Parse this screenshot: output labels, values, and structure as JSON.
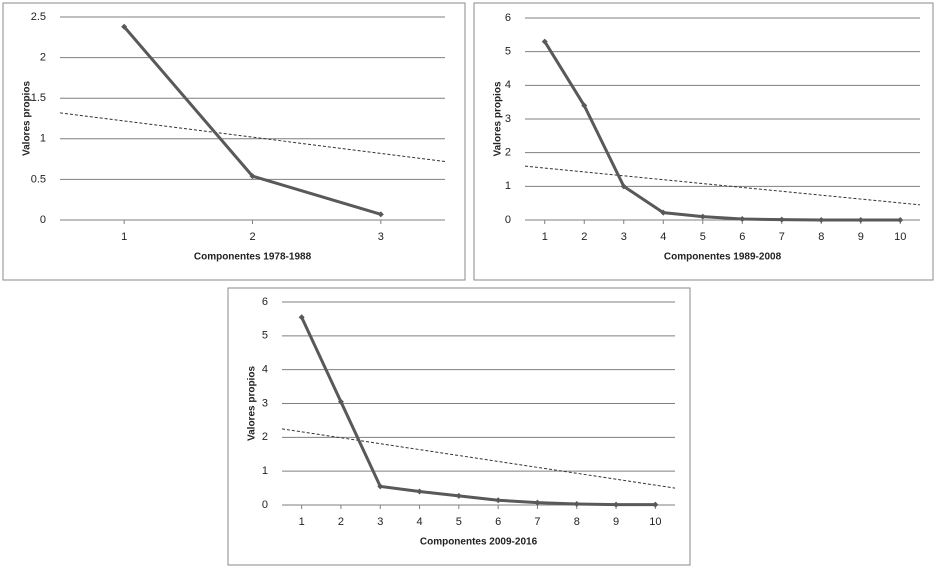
{
  "chart_data": [
    {
      "type": "line",
      "x": [
        1,
        2,
        3
      ],
      "xlim": [
        0.5,
        3.5
      ],
      "xticks": [
        1,
        2,
        3
      ],
      "ylim": [
        0,
        2.5
      ],
      "yticks": [
        0,
        0.5,
        1,
        1.5,
        2,
        2.5
      ],
      "grid": true,
      "xlabel": "Componentes 1978-1988",
      "ylabel": "Valores propios",
      "series": [
        {
          "color": "#595959",
          "values": [
            2.38,
            0.54,
            0.07
          ]
        }
      ],
      "trend": {
        "x": [
          0.5,
          3.5
        ],
        "values": [
          1.32,
          0.72
        ],
        "color": "#333333",
        "style": "dashed"
      }
    },
    {
      "type": "line",
      "x": [
        1,
        2,
        3,
        4,
        5,
        6,
        7,
        8,
        9,
        10
      ],
      "xlim": [
        0.5,
        10.5
      ],
      "xticks": [
        1,
        2,
        3,
        4,
        5,
        6,
        7,
        8,
        9,
        10
      ],
      "ylim": [
        0,
        6
      ],
      "yticks": [
        0,
        1,
        2,
        3,
        4,
        5,
        6
      ],
      "grid": true,
      "xlabel": "Componentes 1989-2008",
      "ylabel": "Valores propios",
      "series": [
        {
          "color": "#595959",
          "values": [
            5.3,
            3.4,
            1.0,
            0.22,
            0.1,
            0.03,
            0.01,
            0,
            0,
            0
          ]
        }
      ],
      "trend": {
        "x": [
          0.5,
          10.5
        ],
        "values": [
          1.6,
          0.45
        ],
        "color": "#333333",
        "style": "dashed"
      }
    },
    {
      "type": "line",
      "x": [
        1,
        2,
        3,
        4,
        5,
        6,
        7,
        8,
        9,
        10
      ],
      "xlim": [
        0.5,
        10.5
      ],
      "xticks": [
        1,
        2,
        3,
        4,
        5,
        6,
        7,
        8,
        9,
        10
      ],
      "ylim": [
        0,
        6
      ],
      "yticks": [
        0,
        1,
        2,
        3,
        4,
        5,
        6
      ],
      "grid": true,
      "xlabel": "Componentes 2009-2016",
      "ylabel": "Valores propios",
      "series": [
        {
          "color": "#595959",
          "values": [
            5.55,
            3.05,
            0.55,
            0.4,
            0.27,
            0.14,
            0.07,
            0.03,
            0.01,
            0.01
          ]
        }
      ],
      "trend": {
        "x": [
          0.5,
          10.5
        ],
        "values": [
          2.25,
          0.5
        ],
        "color": "#333333",
        "style": "dashed"
      }
    }
  ]
}
